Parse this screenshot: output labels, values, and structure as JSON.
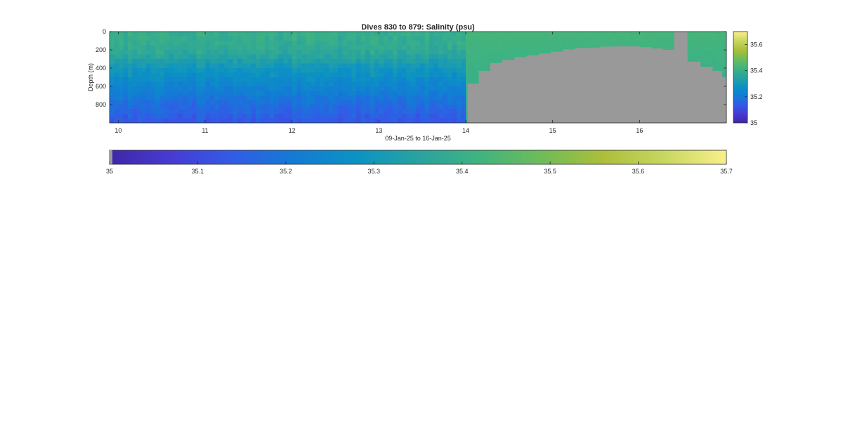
{
  "chart_data": {
    "type": "heatmap",
    "title": "Dives 830 to 879: Salinity (psu)",
    "xlabel": "09-Jan-25 to 16-Jan-25",
    "ylabel": "Depth (m)",
    "xlim": [
      9.9,
      17.0
    ],
    "ylim": [
      0,
      1000
    ],
    "y_reversed": true,
    "x_ticks": [
      "10",
      "11",
      "12",
      "13",
      "14",
      "15",
      "16"
    ],
    "y_ticks": [
      "0",
      "200",
      "400",
      "600",
      "800"
    ],
    "colorbar": {
      "colormap": "parula",
      "range": [
        35,
        35.7
      ],
      "right_ticks": [
        "35",
        "35.2",
        "35.4",
        "35.6"
      ],
      "bottom_ticks": [
        "35",
        "35.1",
        "35.2",
        "35.3",
        "35.4",
        "35.5",
        "35.6",
        "35.7"
      ]
    },
    "missing_color": "#999999",
    "ship_track": [
      {
        "x": 14.02,
        "depth": 570
      },
      {
        "x": 14.15,
        "depth": 430
      },
      {
        "x": 14.28,
        "depth": 345
      },
      {
        "x": 14.42,
        "depth": 310
      },
      {
        "x": 14.56,
        "depth": 280
      },
      {
        "x": 14.7,
        "depth": 260
      },
      {
        "x": 14.84,
        "depth": 240
      },
      {
        "x": 14.98,
        "depth": 220
      },
      {
        "x": 15.12,
        "depth": 195
      },
      {
        "x": 15.26,
        "depth": 180
      },
      {
        "x": 15.4,
        "depth": 175
      },
      {
        "x": 15.55,
        "depth": 165
      },
      {
        "x": 15.7,
        "depth": 163
      },
      {
        "x": 15.85,
        "depth": 162
      },
      {
        "x": 16.0,
        "depth": 170
      },
      {
        "x": 16.14,
        "depth": 185
      },
      {
        "x": 16.27,
        "depth": 200
      },
      {
        "x": 16.4,
        "depth": 0
      },
      {
        "x": 16.55,
        "depth": 330
      },
      {
        "x": 16.7,
        "depth": 385
      },
      {
        "x": 16.84,
        "depth": 430
      },
      {
        "x": 16.95,
        "depth": 500
      }
    ],
    "salinity_profile": {
      "depths": [
        0,
        200,
        400,
        600,
        800,
        1000
      ],
      "left_section": [
        35.4,
        35.38,
        35.3,
        35.24,
        35.18,
        35.13
      ],
      "right_section": [
        35.43,
        35.42,
        35.41,
        35.4,
        35.39,
        35.38
      ]
    }
  }
}
